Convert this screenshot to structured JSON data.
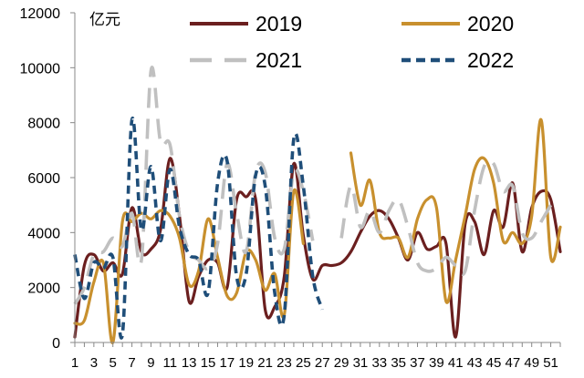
{
  "chart_data": {
    "type": "line",
    "ylabel": "亿元",
    "ylim": [
      0,
      12000
    ],
    "yticks": [
      0,
      2000,
      4000,
      6000,
      8000,
      10000,
      12000
    ],
    "xlim": [
      1,
      52
    ],
    "xtick_labels": [
      "1",
      "3",
      "5",
      "7",
      "9",
      "11",
      "13",
      "15",
      "17",
      "19",
      "21",
      "23",
      "25",
      "27",
      "29",
      "31",
      "33",
      "35",
      "37",
      "39",
      "41",
      "43",
      "45",
      "47",
      "49",
      "51"
    ],
    "grid": false,
    "legend_position": "top",
    "x": [
      1,
      2,
      3,
      4,
      5,
      6,
      7,
      8,
      9,
      10,
      11,
      12,
      13,
      14,
      15,
      16,
      17,
      18,
      19,
      20,
      21,
      22,
      23,
      24,
      25,
      26,
      27,
      28,
      29,
      30,
      31,
      32,
      33,
      34,
      35,
      36,
      37,
      38,
      39,
      40,
      41,
      42,
      43,
      44,
      45,
      46,
      47,
      48,
      49,
      50,
      51,
      52
    ],
    "series": [
      {
        "name": "2019",
        "color": "#6b1f1f",
        "dash": "solid",
        "values": [
          200,
          2800,
          3200,
          2600,
          2900,
          2500,
          4900,
          3300,
          3400,
          4100,
          6700,
          4600,
          1500,
          2400,
          3000,
          2900,
          2000,
          5200,
          5300,
          5200,
          1200,
          1300,
          2400,
          6500,
          3900,
          2300,
          2800,
          2800,
          2900,
          3300,
          4000,
          4600,
          4800,
          4500,
          3800,
          3000,
          4000,
          3400,
          3500,
          3600,
          200,
          4300,
          4400,
          3200,
          4800,
          4200,
          5800,
          3300,
          4900,
          5500,
          5200,
          3300
        ]
      },
      {
        "name": "2020",
        "color": "#c8902e",
        "dash": "solid",
        "values": [
          700,
          800,
          2200,
          2900,
          0,
          4400,
          4400,
          4700,
          4500,
          4800,
          4600,
          3800,
          2100,
          2600,
          4500,
          3100,
          1700,
          1800,
          3300,
          3000,
          1900,
          2500,
          1000,
          5500,
          3600,
          null,
          null,
          null,
          null,
          6900,
          5000,
          5900,
          4000,
          3800,
          3800,
          3100,
          4500,
          5200,
          4900,
          1500,
          3000,
          4600,
          6300,
          6700,
          5800,
          3700,
          4000,
          3600,
          4600,
          8100,
          3100,
          4200
        ]
      },
      {
        "name": "2021",
        "color": "#c0c0c0",
        "dash": "long",
        "values": [
          1400,
          2000,
          3200,
          3300,
          3800,
          3500,
          4700,
          3000,
          9900,
          7300,
          7200,
          4600,
          3300,
          3000,
          2700,
          3600,
          6500,
          4700,
          3300,
          6200,
          6200,
          3800,
          3400,
          6200,
          5500,
          3700,
          null,
          null,
          3800,
          5700,
          4200,
          4800,
          4000,
          4800,
          5200,
          4200,
          2900,
          2600,
          2700,
          3100,
          2800,
          2600,
          4800,
          6400,
          6500,
          5500,
          5700,
          4000,
          3800,
          4400,
          5000,
          null
        ]
      },
      {
        "name": "2022",
        "color": "#1f4e79",
        "dash": "short",
        "values": [
          3200,
          1600,
          2900,
          2700,
          3100,
          300,
          8100,
          4100,
          6400,
          3700,
          6300,
          4200,
          3200,
          3000,
          1800,
          5800,
          6600,
          2400,
          2500,
          6100,
          5700,
          1800,
          1000,
          7400,
          5700,
          2400,
          1200,
          null,
          null,
          null,
          null,
          null,
          null,
          null,
          null,
          null,
          null,
          null,
          null,
          null,
          null,
          null,
          null,
          null,
          null,
          null,
          null,
          null,
          null,
          null,
          null,
          null
        ]
      }
    ]
  }
}
